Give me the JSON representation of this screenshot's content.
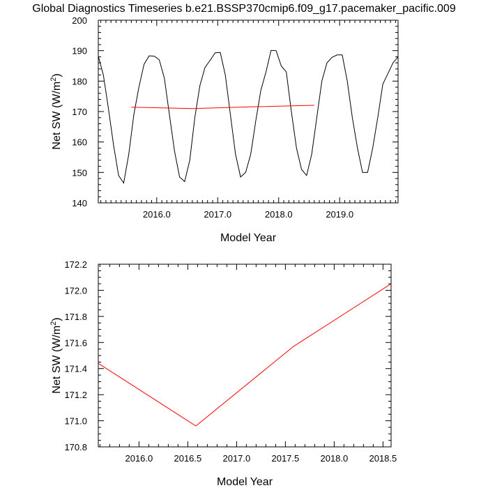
{
  "title": "Global Diagnostics Timeseries b.e21.BSSP370cmip6.f09_g17.pacemaker_pacific.009",
  "chart_data": [
    {
      "type": "line",
      "xlabel": "Model Year",
      "ylabel": "Net SW (W/m²)",
      "ylabel_main": "Net SW (W/m",
      "ylabel_sup": "2",
      "ylabel_end": ")",
      "xlim": [
        2015.042,
        2019.958
      ],
      "ylim": [
        140,
        200
      ],
      "xticks": [
        2016.0,
        2017.0,
        2018.0,
        2019.0
      ],
      "xtick_labels": [
        "2016.0",
        "2017.0",
        "2018.0",
        "2019.0"
      ],
      "yticks": [
        140,
        150,
        160,
        170,
        180,
        190,
        200
      ],
      "ytick_labels": [
        "140",
        "150",
        "160",
        "170",
        "180",
        "190",
        "200"
      ],
      "grid": false,
      "series": [
        {
          "color": "#000000",
          "x": [
            2015.042,
            2015.125,
            2015.208,
            2015.292,
            2015.375,
            2015.458,
            2015.542,
            2015.625,
            2015.708,
            2015.792,
            2015.875,
            2015.958,
            2016.042,
            2016.125,
            2016.208,
            2016.292,
            2016.375,
            2016.458,
            2016.542,
            2016.625,
            2016.708,
            2016.792,
            2016.875,
            2016.958,
            2017.042,
            2017.125,
            2017.208,
            2017.292,
            2017.375,
            2017.458,
            2017.542,
            2017.625,
            2017.708,
            2017.792,
            2017.875,
            2017.958,
            2018.042,
            2018.125,
            2018.208,
            2018.292,
            2018.375,
            2018.458,
            2018.542,
            2018.625,
            2018.708,
            2018.792,
            2018.875,
            2018.958,
            2019.042,
            2019.125,
            2019.208,
            2019.292,
            2019.375,
            2019.458,
            2019.542,
            2019.625,
            2019.708,
            2019.792,
            2019.875,
            2019.958
          ],
          "y": [
            188.2,
            182.0,
            171.0,
            159.0,
            149.0,
            146.5,
            156.0,
            169.0,
            178.0,
            185.5,
            188.3,
            188.2,
            187.0,
            181.0,
            169.0,
            157.0,
            148.5,
            147.0,
            154.0,
            168.0,
            178.5,
            184.5,
            186.8,
            189.3,
            189.4,
            182.0,
            169.0,
            156.0,
            148.5,
            150.0,
            156.0,
            167.0,
            177.0,
            183.0,
            190.1,
            190.0,
            185.0,
            183.0,
            170.0,
            158.0,
            151.0,
            149.0,
            156.0,
            168.0,
            180.0,
            186.0,
            187.8,
            188.6,
            188.6,
            180.0,
            168.0,
            158.0,
            150.0,
            150.0,
            158.0,
            168.0,
            179.0,
            182.5,
            186.0,
            188.0
          ]
        },
        {
          "color": "#ff0000",
          "x": [
            2015.583,
            2016.583,
            2017.583,
            2018.583
          ],
          "y": [
            171.44,
            170.96,
            171.57,
            172.05
          ]
        }
      ]
    },
    {
      "type": "line",
      "xlabel": "Model Year",
      "ylabel": "Net SW (W/m²)",
      "ylabel_main": "Net SW (W/m",
      "ylabel_sup": "2",
      "ylabel_end": ")",
      "xlim": [
        2015.583,
        2018.583
      ],
      "ylim": [
        170.8,
        172.2
      ],
      "xticks": [
        2016.0,
        2016.5,
        2017.0,
        2017.5,
        2018.0,
        2018.5
      ],
      "xtick_labels": [
        "2016.0",
        "2016.5",
        "2017.0",
        "2017.5",
        "2018.0",
        "2018.5"
      ],
      "yticks": [
        170.8,
        171.0,
        171.2,
        171.4,
        171.6,
        171.8,
        172.0,
        172.2
      ],
      "ytick_labels": [
        "170.8",
        "171.0",
        "171.2",
        "171.4",
        "171.6",
        "171.8",
        "172.0",
        "172.2"
      ],
      "grid": false,
      "series": [
        {
          "color": "#ff0000",
          "x": [
            2015.583,
            2016.583,
            2017.583,
            2018.583
          ],
          "y": [
            171.44,
            170.96,
            171.57,
            172.05
          ]
        }
      ]
    }
  ]
}
